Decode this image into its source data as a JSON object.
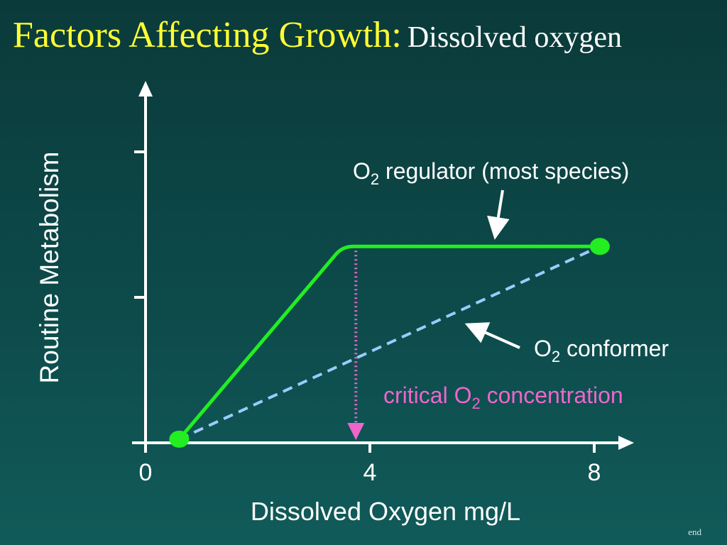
{
  "title": {
    "main": "Factors Affecting Growth:",
    "sub": "Dissolved oxygen"
  },
  "footer": {
    "end_label": "end"
  },
  "colors": {
    "title": "#ffff33",
    "axes": "#ffffff",
    "regulator_line": "#22ee22",
    "conformer_line": "#99ccff",
    "critical_marker": "#ee66cc",
    "background": "#0d4a4a"
  },
  "chart_data": {
    "type": "line",
    "xlabel": "Dissolved Oxygen mg/L",
    "ylabel": "Routine Metabolism",
    "xlim": [
      0,
      8.8
    ],
    "ylim": [
      0,
      6.2
    ],
    "x_ticks": [
      0,
      4,
      8
    ],
    "x_tick_labels": [
      "0",
      "4",
      "8"
    ],
    "y_ticks": [
      2,
      4
    ],
    "y_tick_labels": [
      "",
      ""
    ],
    "grid": false,
    "series": [
      {
        "name": "O2 regulator (most species)",
        "style": "solid",
        "points": [
          [
            0.6,
            0.05
          ],
          [
            3.5,
            2.7
          ],
          [
            8.1,
            2.7
          ]
        ]
      },
      {
        "name": "O2 conformer",
        "style": "dashed",
        "points": [
          [
            0.6,
            0.05
          ],
          [
            8.1,
            2.7
          ]
        ]
      }
    ],
    "endpoint_markers": [
      [
        0.6,
        0.05
      ],
      [
        8.1,
        2.7
      ]
    ],
    "critical_o2": {
      "label": "critical O2 concentration",
      "x": 3.75,
      "y_top": 2.7
    },
    "annotations": [
      {
        "label": "O2 regulator (most species)",
        "prefix": "O",
        "sub": "2",
        "suffix": " regulator (most species)"
      },
      {
        "label": "O2 conformer",
        "prefix": "O",
        "sub": "2",
        "suffix": " conformer"
      },
      {
        "label": "critical O2 concentration",
        "prefix": "critical O",
        "sub": "2",
        "suffix": " concentration"
      }
    ]
  }
}
